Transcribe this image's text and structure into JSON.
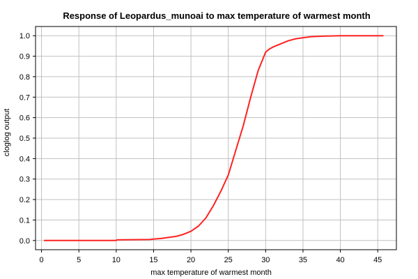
{
  "chart_data": {
    "type": "line",
    "title": "Response of Leopardus_munoai to max temperature of warmest month",
    "xlabel": "max temperature of warmest month",
    "ylabel": "cloglog output",
    "xlim": [
      -0.8,
      47.5
    ],
    "ylim": [
      -0.045,
      1.045
    ],
    "x_ticks": [
      0,
      5,
      10,
      15,
      20,
      25,
      30,
      35,
      40,
      45
    ],
    "x_tick_labels": [
      "0",
      "5",
      "10",
      "15",
      "20",
      "25",
      "30",
      "35",
      "40",
      "45"
    ],
    "y_ticks": [
      0.0,
      0.1,
      0.2,
      0.3,
      0.4,
      0.5,
      0.6,
      0.7,
      0.8,
      0.9,
      1.0
    ],
    "y_tick_labels": [
      "0.0",
      "0.1",
      "0.2",
      "0.3",
      "0.4",
      "0.5",
      "0.6",
      "0.7",
      "0.8",
      "0.9",
      "1.0"
    ],
    "grid": true,
    "colors": {
      "line": "#ff2020"
    },
    "series": [
      {
        "x": [
          0.4,
          10.0,
          10.1,
          14.5,
          15.0,
          16.0,
          17.0,
          18.0,
          19.0,
          20.0,
          21.0,
          22.0,
          23.0,
          24.0,
          25.0,
          25.5,
          26.0,
          27.0,
          28.0,
          29.0,
          30.0,
          30.5,
          31.0,
          32.0,
          33.0,
          34.0,
          35.0,
          36.0,
          37.0,
          38.0,
          40.0,
          45.7
        ],
        "y": [
          0.0,
          0.0,
          0.003,
          0.005,
          0.007,
          0.01,
          0.015,
          0.02,
          0.03,
          0.045,
          0.07,
          0.11,
          0.17,
          0.24,
          0.32,
          0.38,
          0.44,
          0.56,
          0.7,
          0.83,
          0.92,
          0.935,
          0.945,
          0.96,
          0.975,
          0.985,
          0.99,
          0.995,
          0.997,
          0.998,
          1.0,
          1.0
        ]
      }
    ]
  }
}
